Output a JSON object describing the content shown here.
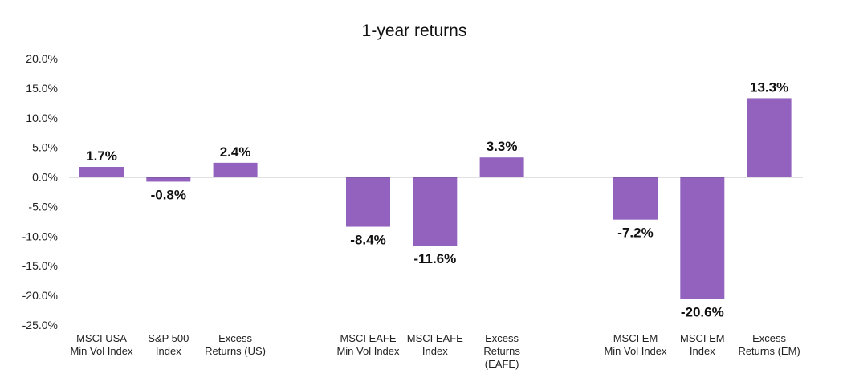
{
  "chart_data": {
    "type": "bar",
    "title": "1-year returns",
    "categories": [
      [
        "MSCI USA",
        "Min Vol Index"
      ],
      [
        "S&P 500",
        "Index"
      ],
      [
        "Excess",
        "Returns (US)"
      ],
      [
        "MSCI EAFE",
        "Min Vol Index"
      ],
      [
        "MSCI EAFE",
        "Index"
      ],
      [
        "Excess",
        "Returns",
        "(EAFE)"
      ],
      [
        "MSCI EM",
        "Min Vol Index"
      ],
      [
        "MSCI EM",
        "Index"
      ],
      [
        "Excess",
        "Returns (EM)"
      ]
    ],
    "values": [
      1.7,
      -0.8,
      2.4,
      -8.4,
      -11.6,
      3.3,
      -7.2,
      -20.6,
      13.3
    ],
    "value_labels": [
      "1.7%",
      "-0.8%",
      "2.4%",
      "-8.4%",
      "-11.6%",
      "3.3%",
      "-7.2%",
      "-20.6%",
      "13.3%"
    ],
    "groups": [
      [
        0,
        1,
        2
      ],
      [
        3,
        4,
        5
      ],
      [
        6,
        7,
        8
      ]
    ],
    "yticks": [
      "20.0%",
      "15.0%",
      "10.0%",
      "5.0%",
      "0.0%",
      "-5.0%",
      "-10.0%",
      "-15.0%",
      "-20.0%",
      "-25.0%"
    ],
    "ylim": [
      -25,
      20
    ],
    "xlabel": "",
    "ylabel": "",
    "grid": false,
    "legend": "none",
    "colors": {
      "bar": "#9262be",
      "axis": "#111111"
    }
  }
}
